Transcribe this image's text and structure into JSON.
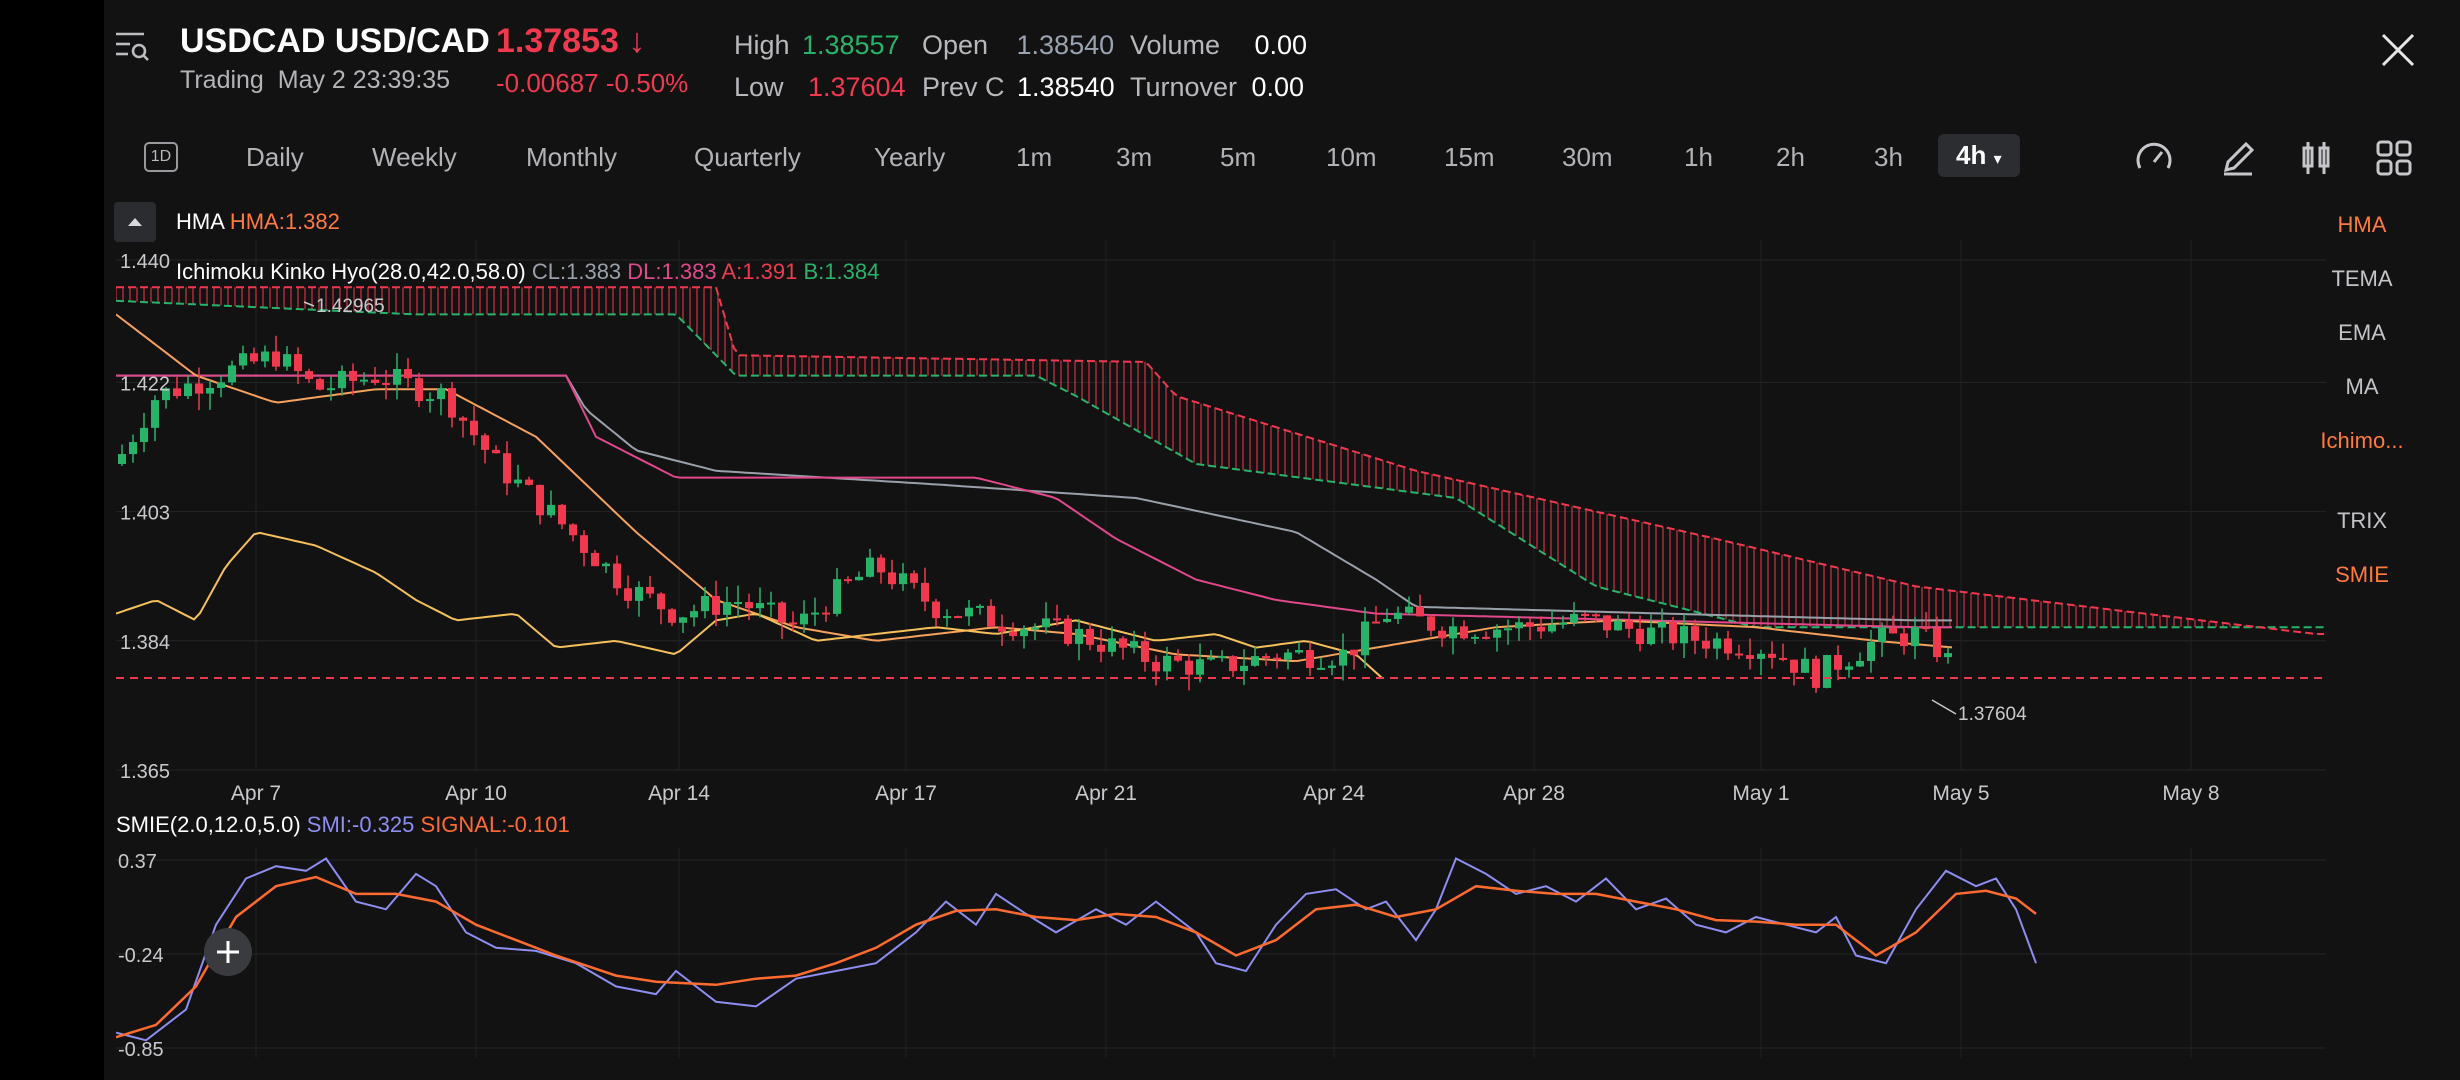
{
  "header": {
    "symbol": "USDCAD USD/CAD",
    "price": "1.37853",
    "price_arrow": "↓",
    "status": "Trading",
    "datetime": "May 2 23:39:35",
    "change": "-0.00687",
    "change_pct": "-0.50%",
    "stats": {
      "high_label": "High",
      "high": "1.38557",
      "open_label": "Open",
      "open": "1.38540",
      "volume_label": "Volume",
      "volume": "0.00",
      "low_label": "Low",
      "low": "1.37604",
      "prevc_label": "Prev C",
      "prevc": "1.38540",
      "turnover_label": "Turnover",
      "turnover": "0.00"
    }
  },
  "toolbar": {
    "timeframes": [
      "Daily",
      "Weekly",
      "Monthly",
      "Quarterly",
      "Yearly",
      "1m",
      "3m",
      "5m",
      "10m",
      "15m",
      "30m",
      "1h",
      "2h",
      "3h"
    ],
    "active": "4h",
    "calendar_label": "1D"
  },
  "indicators_panel": [
    "HMA",
    "TEMA",
    "EMA",
    "MA",
    "Ichimo...",
    "TRIX",
    "SMIE"
  ],
  "legend": {
    "hma_name": "HMA",
    "hma_value": "HMA:1.382",
    "ichimoku": "Ichimoku Kinko Hyo(28.0,42.0,58.0)",
    "cl": "CL:1.383",
    "dl": "DL:1.383",
    "a": "A:1.391",
    "b": "B:1.384",
    "smie": "SMIE(2.0,12.0,5.0)",
    "smi": "SMI:-0.325",
    "signal": "SIGNAL:-0.101"
  },
  "chart_data": {
    "type": "line",
    "main": {
      "y_ticks": [
        "1.440",
        "1.422",
        "1.403",
        "1.384",
        "1.365"
      ],
      "ylim": [
        1.365,
        1.44
      ],
      "x_ticks": [
        "Apr 7",
        "Apr 10",
        "Apr 14",
        "Apr 17",
        "Apr 21",
        "Apr 24",
        "Apr 28",
        "May 1",
        "May 5",
        "May 8"
      ],
      "high_label": "1.42965",
      "low_label": "1.37604",
      "current_price": 1.37853
    },
    "smie": {
      "y_ticks": [
        "0.37",
        "-0.24",
        "-0.85"
      ],
      "ylim": [
        -0.85,
        0.37
      ]
    }
  },
  "colors": {
    "up": "#27b36a",
    "down": "#f0394f",
    "accent": "#ff7a3d",
    "hma": "#f7a15c",
    "cl": "#9aa0aa",
    "dl": "#e0488b",
    "smi": "#8e8df0",
    "signal": "#ff6a2f",
    "yellow": "#f5c05a"
  }
}
